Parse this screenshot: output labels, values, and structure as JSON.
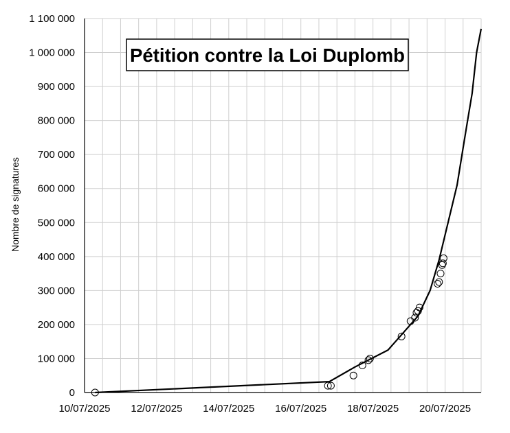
{
  "chart_data": {
    "type": "line",
    "title": "Pétition contre la Loi Duplomb",
    "xlabel": "",
    "ylabel": "Nombre de signatures",
    "x_ticks": [
      "10/07/2025",
      "12/07/2025",
      "14/07/2025",
      "16/07/2025",
      "18/07/2025",
      "20/07/2025"
    ],
    "y_ticks": [
      "0",
      "100 000",
      "200 000",
      "300 000",
      "400 000",
      "500 000",
      "600 000",
      "700 000",
      "800 000",
      "900 000",
      "1 000 000",
      "1 100 000"
    ],
    "xlim": [
      "10/07/2025",
      "21/07/2025"
    ],
    "ylim": [
      0,
      1100000
    ],
    "grid": true,
    "legend": "none",
    "series": [
      {
        "style": "line",
        "color": "#000000",
        "points": [
          {
            "x": "10/07/2025 07:00",
            "y": 0
          },
          {
            "x": "16/07/2025 19:00",
            "y": 32000
          },
          {
            "x": "17/07/2025 12:00",
            "y": 75000
          },
          {
            "x": "18/07/2025 10:00",
            "y": 125000
          },
          {
            "x": "18/07/2025 19:00",
            "y": 170000
          },
          {
            "x": "19/07/2025 06:00",
            "y": 225000
          },
          {
            "x": "19/07/2025 14:00",
            "y": 300000
          },
          {
            "x": "19/07/2025 20:00",
            "y": 390000
          },
          {
            "x": "20/07/2025 02:00",
            "y": 500000
          },
          {
            "x": "20/07/2025 08:00",
            "y": 610000
          },
          {
            "x": "20/07/2025 12:00",
            "y": 720000
          },
          {
            "x": "20/07/2025 15:00",
            "y": 800000
          },
          {
            "x": "20/07/2025 18:00",
            "y": 880000
          },
          {
            "x": "20/07/2025 21:00",
            "y": 1000000
          },
          {
            "x": "21/07/2025 00:00",
            "y": 1070000
          }
        ]
      },
      {
        "style": "markers",
        "marker": "open-circle",
        "color": "#000000",
        "points": [
          {
            "x": "10/07/2025 07:00",
            "y": 0
          },
          {
            "x": "16/07/2025 18:00",
            "y": 20000
          },
          {
            "x": "16/07/2025 20:00",
            "y": 20000
          },
          {
            "x": "17/07/2025 11:00",
            "y": 50000
          },
          {
            "x": "17/07/2025 17:00",
            "y": 80000
          },
          {
            "x": "17/07/2025 21:00",
            "y": 95000
          },
          {
            "x": "17/07/2025 22:00",
            "y": 100000
          },
          {
            "x": "18/07/2025 19:00",
            "y": 165000
          },
          {
            "x": "19/07/2025 01:00",
            "y": 210000
          },
          {
            "x": "19/07/2025 04:00",
            "y": 220000
          },
          {
            "x": "19/07/2025 05:00",
            "y": 235000
          },
          {
            "x": "19/07/2025 06:00",
            "y": 240000
          },
          {
            "x": "19/07/2025 07:00",
            "y": 250000
          },
          {
            "x": "19/07/2025 19:00",
            "y": 320000
          },
          {
            "x": "19/07/2025 20:00",
            "y": 325000
          },
          {
            "x": "19/07/2025 21:00",
            "y": 350000
          },
          {
            "x": "19/07/2025 22:00",
            "y": 375000
          },
          {
            "x": "19/07/2025 22:30",
            "y": 380000
          },
          {
            "x": "19/07/2025 23:00",
            "y": 395000
          }
        ]
      }
    ]
  }
}
